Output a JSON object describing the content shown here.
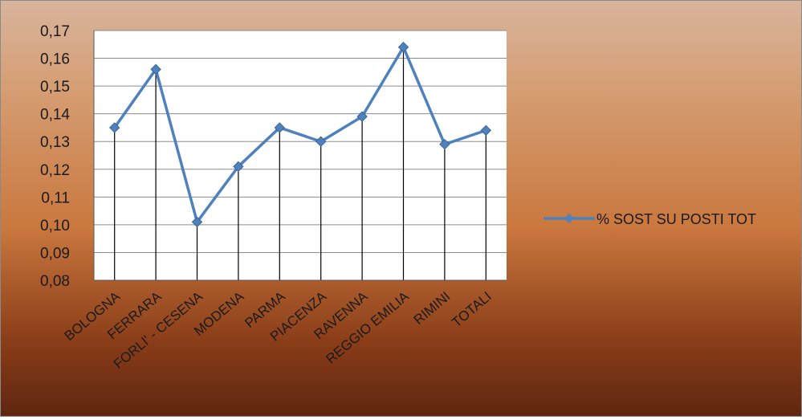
{
  "chart_data": {
    "type": "line",
    "title": "",
    "xlabel": "",
    "ylabel": "",
    "categories": [
      "BOLOGNA",
      "FERRARA",
      "FORLI' - CESENA",
      "MODENA",
      "PARMA",
      "PIACENZA",
      "RAVENNA",
      "REGGIO EMILIA",
      "RIMINI",
      "TOTALI"
    ],
    "series": [
      {
        "name": "% SOST SU POSTI TOT",
        "values": [
          0.135,
          0.156,
          0.101,
          0.121,
          0.135,
          0.13,
          0.139,
          0.164,
          0.129,
          0.134
        ],
        "color": "#4f81bd",
        "marker": "diamond"
      }
    ],
    "ylim": [
      0.08,
      0.17
    ],
    "yticks": [
      "0,17",
      "0,16",
      "0,15",
      "0,14",
      "0,13",
      "0,12",
      "0,11",
      "0,10",
      "0,09",
      "0,08"
    ],
    "grid": true,
    "drop_lines": true,
    "legend_position": "right",
    "plot_background": "#ffffff"
  }
}
